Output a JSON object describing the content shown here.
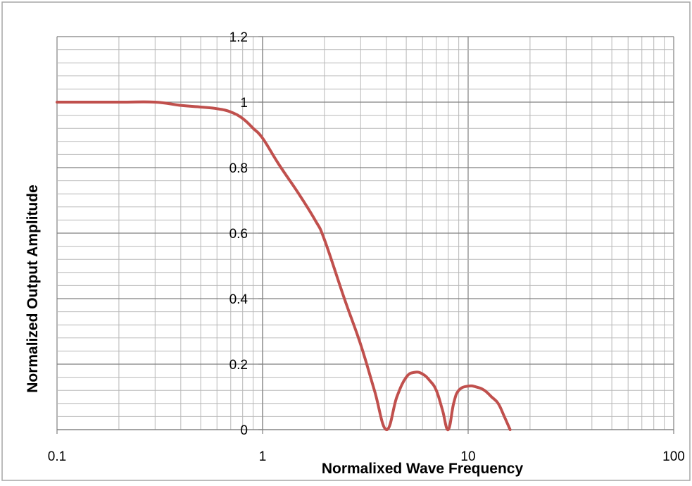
{
  "chart_data": {
    "type": "line",
    "xscale": "log",
    "xlim": [
      0.1,
      100
    ],
    "ylim": [
      0,
      1.2
    ],
    "xticks": [
      "0.1",
      "1",
      "10",
      "100"
    ],
    "yticks": [
      "0",
      "0.2",
      "0.4",
      "0.6",
      "0.8",
      "1",
      "1.2"
    ],
    "xlabel": "Normalixed Wave Frequency",
    "ylabel": "Normalized Output  Amplitude",
    "grid": true,
    "legend": "none",
    "line_color": "#c0504d",
    "series": [
      {
        "x": [
          0.1,
          0.2,
          0.3,
          0.4,
          0.5,
          0.6,
          0.7,
          0.8,
          0.9,
          1.0,
          1.2,
          1.5,
          1.8,
          2.0,
          2.5,
          3.0,
          3.5,
          4.0,
          4.5,
          5.0,
          5.5,
          6.0,
          6.5,
          7.0,
          7.5,
          8.0,
          8.5,
          9.0,
          10.0,
          11.0,
          12.0,
          13.0,
          14.0,
          15.0,
          16.0
        ],
        "y": [
          1.0,
          1.0,
          1.0,
          0.99,
          0.985,
          0.98,
          0.97,
          0.95,
          0.92,
          0.89,
          0.81,
          0.72,
          0.64,
          0.58,
          0.4,
          0.26,
          0.12,
          0.0,
          0.1,
          0.16,
          0.175,
          0.17,
          0.15,
          0.12,
          0.06,
          0.0,
          0.08,
          0.12,
          0.133,
          0.13,
          0.12,
          0.1,
          0.08,
          0.04,
          0.0
        ]
      }
    ]
  }
}
